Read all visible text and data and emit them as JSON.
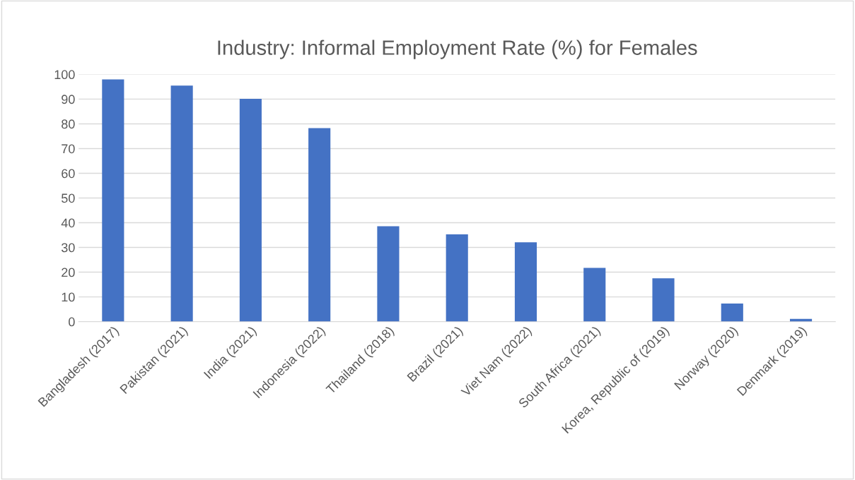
{
  "chart_data": {
    "type": "bar",
    "title": "Industry: Informal Employment Rate (%) for Females",
    "categories": [
      "Bangladesh (2017)",
      "Pakistan (2021)",
      "India (2021)",
      "Indonesia (2022)",
      "Thailand (2018)",
      "Brazil (2021)",
      "Viet Nam (2022)",
      "South Africa (2021)",
      "Korea, Republic of (2019)",
      "Norway (2020)",
      "Denmark (2019)"
    ],
    "values": [
      98.0,
      95.5,
      90.1,
      78.3,
      38.6,
      35.3,
      32.1,
      21.7,
      17.5,
      7.3,
      1.1
    ],
    "color": "#4472c4",
    "ylim": [
      0,
      100
    ],
    "yticks": [
      0,
      10,
      20,
      30,
      40,
      50,
      60,
      70,
      80,
      90,
      100
    ],
    "grid": "y"
  }
}
